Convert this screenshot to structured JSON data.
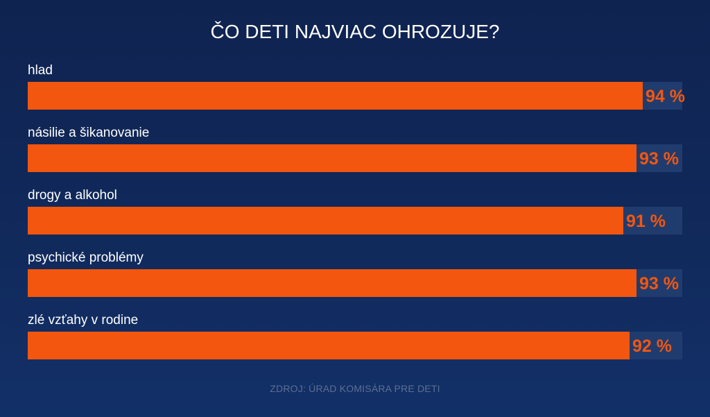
{
  "title": "ČO DETI NAJVIAC OHROZUJE?",
  "source": "ZDROJ: ÚRAD KOMISÁRA PRE DETI",
  "colors": {
    "bar": "#f3560f",
    "track": "#203c6e",
    "background": "#0f2350"
  },
  "chart_data": {
    "type": "bar",
    "orientation": "horizontal",
    "title": "ČO DETI NAJVIAC OHROZUJE?",
    "categories": [
      "hlad",
      "násilie a šikanovanie",
      "drogy a alkohol",
      "psychické problémy",
      "zlé vzťahy v rodine"
    ],
    "values": [
      94,
      93,
      91,
      93,
      92
    ],
    "value_labels": [
      "94 %",
      "93 %",
      "91 %",
      "93 %",
      "92 %"
    ],
    "xlim": [
      0,
      100
    ],
    "grid": false,
    "legend": "none"
  }
}
